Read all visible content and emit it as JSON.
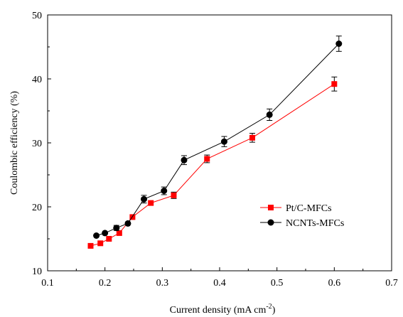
{
  "chart_data": {
    "type": "scatter",
    "xlabel": "Current density (mA cm",
    "xlabel_superscript": "-2",
    "xlabel_suffix": ")",
    "ylabel": "Coulombic efficiency (%)",
    "xlim": [
      0.1,
      0.7
    ],
    "ylim": [
      10,
      50
    ],
    "xticks": [
      "0.1",
      "0.2",
      "0.3",
      "0.4",
      "0.5",
      "0.6",
      "0.7"
    ],
    "yticks": [
      "10",
      "20",
      "30",
      "40",
      "50"
    ],
    "grid": false,
    "legend_position": "center-right",
    "series": [
      {
        "name": "Pt/C-MFCs",
        "color": "#ff0000",
        "marker": "square",
        "x": [
          0.175,
          0.192,
          0.207,
          0.225,
          0.248,
          0.28,
          0.32,
          0.378,
          0.457,
          0.6
        ],
        "y": [
          13.9,
          14.3,
          15.0,
          15.9,
          18.4,
          20.6,
          21.8,
          27.5,
          30.8,
          39.2
        ],
        "err": [
          0,
          0,
          0,
          0,
          0,
          0,
          0.5,
          0.6,
          0.7,
          1.1
        ]
      },
      {
        "name": "NCNTs-MFCs",
        "color": "#000000",
        "marker": "circle",
        "x": [
          0.185,
          0.2,
          0.22,
          0.24,
          0.268,
          0.303,
          0.338,
          0.408,
          0.487,
          0.608
        ],
        "y": [
          15.5,
          15.9,
          16.7,
          17.4,
          21.2,
          22.5,
          27.3,
          30.2,
          34.4,
          45.5
        ],
        "err": [
          0,
          0,
          0.4,
          0,
          0.6,
          0.6,
          0.7,
          0.8,
          0.9,
          1.2
        ]
      }
    ]
  }
}
